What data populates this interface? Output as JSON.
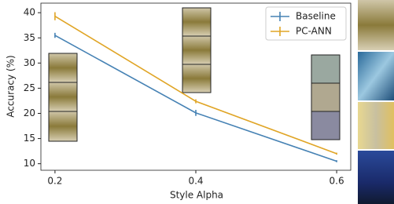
{
  "chart_data": {
    "type": "line",
    "x_label": "Style Alpha",
    "y_label": "Accuracy (%)",
    "x": [
      0.2,
      0.4,
      0.6
    ],
    "series": [
      {
        "name": "Baseline",
        "color": "#4682b4",
        "values": [
          35.5,
          20.1,
          10.5
        ],
        "errors": [
          0.5,
          0.6,
          0.2
        ]
      },
      {
        "name": "PC-ANN",
        "color": "#e0a526",
        "values": [
          39.3,
          22.4,
          12.0
        ],
        "errors": [
          0.8,
          0.4,
          0.2
        ]
      }
    ],
    "xlim": [
      0.18,
      0.62
    ],
    "ylim": [
      8.7,
      41.9
    ],
    "xticks": [
      0.2,
      0.4,
      0.6
    ],
    "yticks": [
      10,
      15,
      20,
      25,
      30,
      35,
      40
    ],
    "legend": "upper right"
  }
}
